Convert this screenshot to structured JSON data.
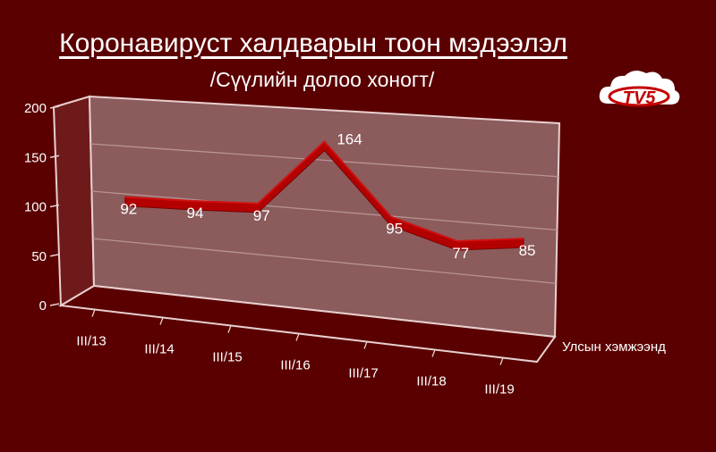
{
  "title": "Коронавируст халдварын тоон мэдээлэл",
  "subtitle": "/Сүүлийн долоо хоногт/",
  "logo": {
    "text": "TV5",
    "icon": "cloud-tv5-logo"
  },
  "colors": {
    "background": "#5a0000",
    "plot_wall": "#8c5b5c",
    "line": "#b30000",
    "text": "#ffffff"
  },
  "chart_data": {
    "type": "line",
    "categories": [
      "III/13",
      "III/14",
      "III/15",
      "III/16",
      "III/17",
      "III/18",
      "III/19"
    ],
    "series": [
      {
        "name": "Улсын хэмжээнд",
        "values": [
          92,
          94,
          97,
          164,
          95,
          77,
          85
        ]
      }
    ],
    "y_ticks": [
      "0",
      "50",
      "100",
      "150",
      "200"
    ],
    "ylim": [
      0,
      200
    ],
    "grid": true,
    "legend_position": "right",
    "data_labels": true,
    "style": "3d"
  }
}
